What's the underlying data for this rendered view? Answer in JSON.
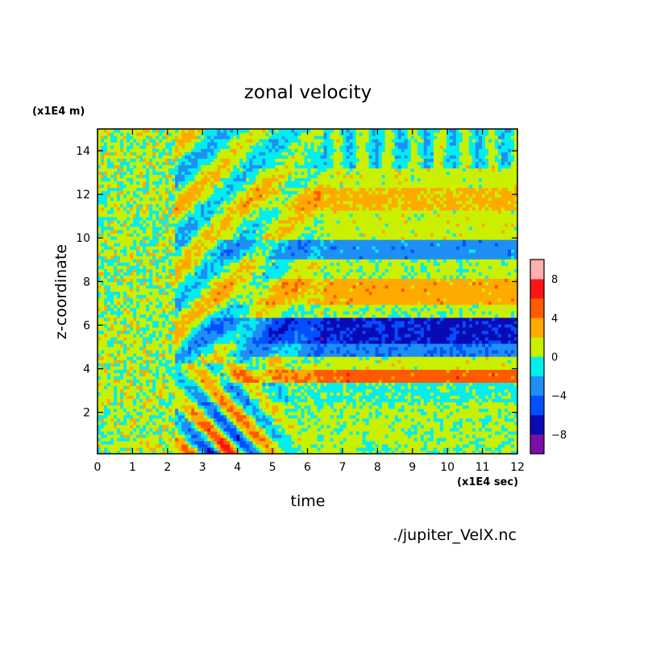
{
  "chart_data": {
    "type": "heatmap",
    "title": "zonal velocity",
    "xlabel": "time",
    "ylabel": "z-coordinate",
    "x_unit": "(x1E4 sec)",
    "y_unit": "(x1E4 m)",
    "source": "./jupiter_VelX.nc",
    "xlim": [
      0,
      12
    ],
    "ylim": [
      0.1,
      15
    ],
    "x_ticks": [
      "0",
      "1",
      "2",
      "3",
      "4",
      "5",
      "6",
      "7",
      "8",
      "9",
      "10",
      "11",
      "12"
    ],
    "y_ticks": [
      "2",
      "4",
      "6",
      "8",
      "10",
      "12",
      "14"
    ],
    "colorbar": {
      "levels": [
        -10,
        -8,
        -6,
        -4,
        -2,
        0,
        2,
        4,
        6,
        8,
        10
      ],
      "tick_labels": [
        "-8",
        "-4",
        "0",
        "4",
        "8"
      ],
      "colors": [
        "#7a0fa8",
        "#0a0ab4",
        "#0050ff",
        "#1e8ff5",
        "#00eeee",
        "#c8f000",
        "#ffaa00",
        "#ff5a00",
        "#ff1414",
        "#ffb0b0"
      ]
    },
    "bands": [
      {
        "z": [
          0.1,
          2.5
        ],
        "value": 0.5
      },
      {
        "z": [
          2.5,
          3.4
        ],
        "value": -0.5
      },
      {
        "z": [
          3.4,
          4.0
        ],
        "value": 5
      },
      {
        "z": [
          4.0,
          4.5
        ],
        "value": 1
      },
      {
        "z": [
          4.5,
          5.1
        ],
        "value": -3.5
      },
      {
        "z": [
          5.1,
          6.3
        ],
        "value": -6.5
      },
      {
        "z": [
          6.3,
          7.0
        ],
        "value": 0.5
      },
      {
        "z": [
          7.0,
          8.2
        ],
        "value": 3
      },
      {
        "z": [
          8.2,
          9.0
        ],
        "value": 0.5
      },
      {
        "z": [
          9.0,
          10.0
        ],
        "value": -3
      },
      {
        "z": [
          10.0,
          11.3
        ],
        "value": 1
      },
      {
        "z": [
          11.3,
          12.3
        ],
        "value": 2.5
      },
      {
        "z": [
          12.3,
          13.2
        ],
        "value": 1
      },
      {
        "z": [
          13.2,
          15.0
        ],
        "value": -0.5
      }
    ]
  }
}
